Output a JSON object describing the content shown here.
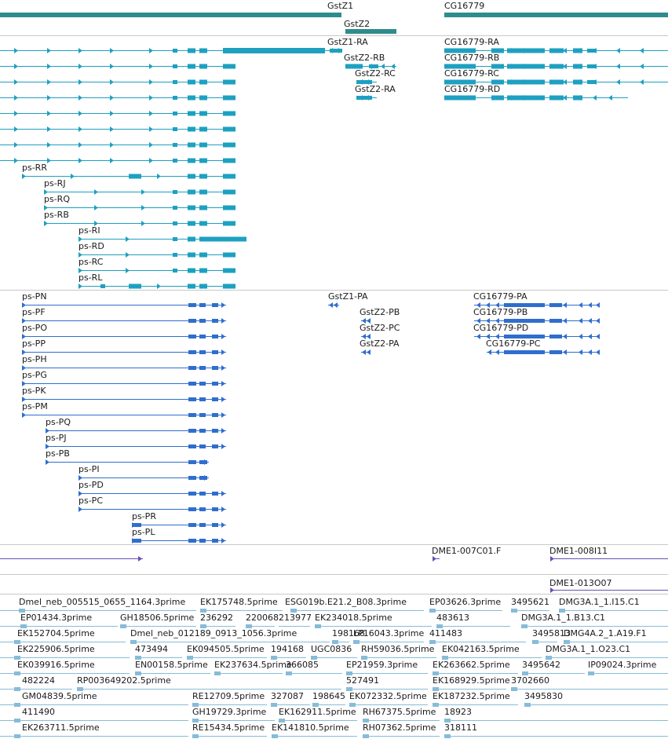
{
  "colors": {
    "gene": "#2e8c8c",
    "transcript": "#1ea0c0",
    "protein": "#2f6ecd",
    "clone": "#6a4fb5",
    "est": "#87bcd9",
    "divider": "#c8c8c8"
  },
  "tracks": {
    "genes": {
      "labels": [
        "GstZ1",
        "GstZ2",
        "CG16779"
      ]
    },
    "transcripts": {
      "labels": [
        "GstZ1-RA",
        "CG16779-RA",
        "GstZ2-RB",
        "CG16779-RB",
        "GstZ2-RC",
        "CG16779-RC",
        "GstZ2-RA",
        "CG16779-RD",
        "ps-RR",
        "ps-RJ",
        "ps-RQ",
        "ps-RB",
        "ps-RI",
        "ps-RD",
        "ps-RC",
        "ps-RL"
      ]
    },
    "proteins": {
      "labels": [
        "ps-PN",
        "GstZ1-PA",
        "CG16779-PA",
        "ps-PF",
        "GstZ2-PB",
        "CG16779-PB",
        "ps-PO",
        "GstZ2-PC",
        "CG16779-PD",
        "ps-PP",
        "GstZ2-PA",
        "CG16779-PC",
        "ps-PH",
        "ps-PG",
        "ps-PK",
        "ps-PM",
        "ps-PQ",
        "ps-PJ",
        "ps-PB",
        "ps-PI",
        "ps-PD",
        "ps-PC",
        "ps-PR",
        "ps-PL"
      ]
    },
    "clones": {
      "labels": [
        "DME1-007C01.F",
        "DME1-008I11",
        "DME1-013O07"
      ]
    },
    "ests": {
      "labels": [
        "Dmel_neb_005515_0655_1164.3prime",
        "EK175748.5prime",
        "ESG019b.E21.2_B08.3prime",
        "EP03626.3prime",
        "3495621",
        "DMG3A.1_1.I15.C1",
        "EP01434.3prime",
        "GH18506.5prime",
        "236292",
        "220068",
        "213977",
        "EK234018.5prime",
        "483613",
        "DMG3A.1_1.B13.C1",
        "EK152704.5prime",
        "Dmel_neb_012189_0913_1056.3prime",
        "198168",
        "LP16043.3prime",
        "411483",
        "3495813",
        "DMG4A.2_1.A19.F1",
        "EK225906.5prime",
        "473494",
        "EK094505.5prime",
        "194168",
        "UGC0836",
        "RH59036.5prime",
        "EK042163.5prime",
        "DMG3A.1_1.O23.C1",
        "EK039916.5prime",
        "EN00158.5prime",
        "EK237634.5prime",
        "366085",
        "EP21959.3prime",
        "EK263662.5prime",
        "3495642",
        "IP09024.3prime",
        "482224",
        "RP003649202.5prime",
        "527491",
        "EK168929.5prime",
        "3702660",
        "GM04839.5prime",
        "RE12709.5prime",
        "327087",
        "198645",
        "EK072332.5prime",
        "EK187232.5prime",
        "3495830",
        "411490",
        "GH19729.3prime",
        "EK162911.5prime",
        "RH67375.5prime",
        "18923",
        "EK263711.5prime",
        "RE15434.5prime",
        "EK141810.5prime",
        "RH07362.5prime",
        "318111"
      ]
    }
  }
}
